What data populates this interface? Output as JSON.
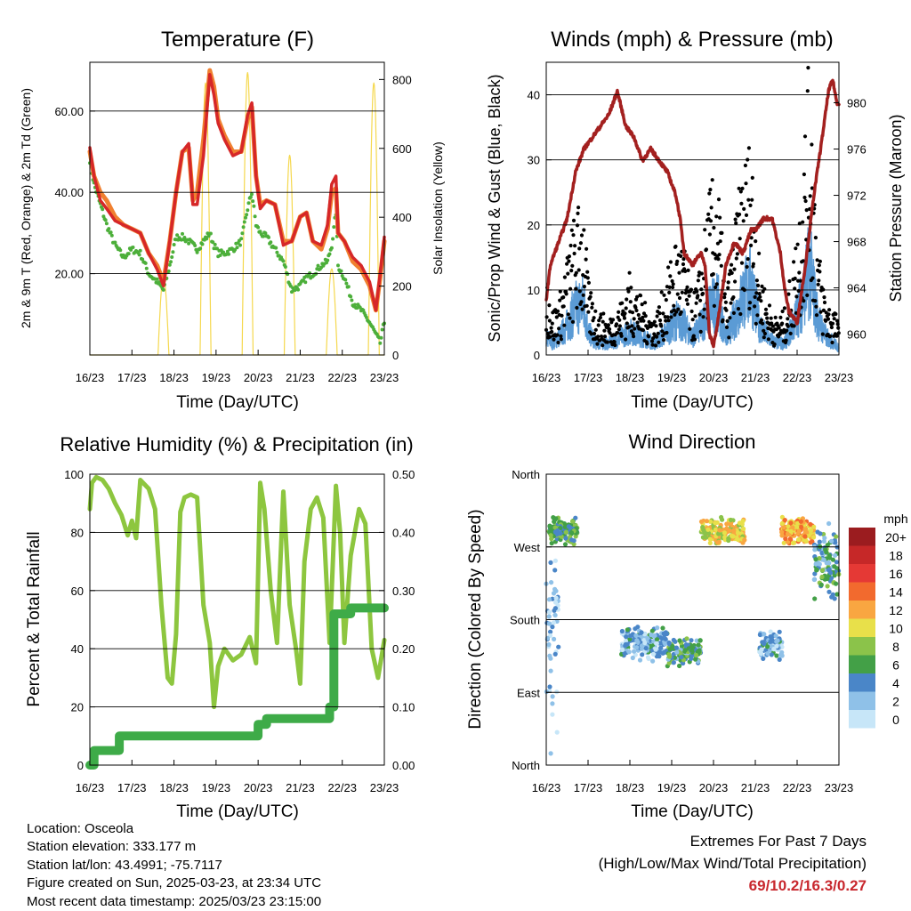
{
  "x_ticks": [
    "16/23",
    "17/23",
    "18/23",
    "19/23",
    "20/23",
    "21/23",
    "22/23",
    "23/23"
  ],
  "x_label": "Time (Day/UTC)",
  "charts": {
    "temperature": {
      "type": "line",
      "title": "Temperature (F)",
      "ylabel_left": "2m & 9m T (Red, Orange) & 2m Td (Green)",
      "ylabel_right": "Solar Insolation (Yellow)",
      "yticks_left": [
        "20.00",
        "40.00",
        "60.00"
      ],
      "yticks_right": [
        "0",
        "200",
        "400",
        "600",
        "800"
      ],
      "ylim_left": [
        0,
        72
      ],
      "ylim_right": [
        0,
        850
      ],
      "colors": {
        "t2m": "#d62728",
        "t9m": "#f08030",
        "td": "#4caf3a",
        "solar": "#f5d84e"
      },
      "x": [
        16.0,
        16.1,
        16.25,
        16.4,
        16.6,
        16.8,
        17.0,
        17.2,
        17.4,
        17.6,
        17.75,
        17.9,
        18.05,
        18.2,
        18.35,
        18.45,
        18.55,
        18.7,
        18.85,
        18.95,
        19.05,
        19.2,
        19.4,
        19.6,
        19.75,
        19.85,
        19.95,
        20.05,
        20.2,
        20.4,
        20.6,
        20.8,
        21.0,
        21.15,
        21.3,
        21.5,
        21.65,
        21.75,
        21.85,
        21.9,
        22.05,
        22.25,
        22.45,
        22.65,
        22.8,
        22.9,
        23.0
      ],
      "t2m": [
        51,
        44,
        38,
        36,
        33,
        32,
        31,
        30,
        25,
        21,
        17,
        28,
        40,
        50,
        52,
        37,
        37,
        49,
        69,
        64,
        57,
        53,
        49,
        50,
        59,
        62,
        44,
        36,
        38,
        37,
        27,
        28,
        34,
        35,
        28,
        27,
        32,
        42,
        44,
        30,
        28,
        24,
        22,
        18,
        11,
        20,
        29
      ],
      "t9m": [
        50,
        44,
        40,
        38,
        34,
        32,
        31,
        30,
        25,
        22,
        18,
        28,
        40,
        50,
        51,
        38,
        40,
        53,
        70,
        66,
        58,
        54,
        50,
        50,
        58,
        61,
        44,
        37,
        38,
        37,
        28,
        28,
        34,
        35,
        28,
        26,
        31,
        40,
        41,
        30,
        28,
        23,
        21,
        17,
        11,
        19,
        28
      ],
      "td": [
        48,
        42,
        37,
        32,
        27,
        24,
        26,
        25,
        20,
        18,
        16,
        22,
        29,
        29,
        28,
        27,
        26,
        28,
        30,
        27,
        25,
        25,
        26,
        28,
        36,
        40,
        32,
        30,
        29,
        26,
        23,
        16,
        17,
        19,
        20,
        22,
        23,
        27,
        35,
        22,
        19,
        13,
        11,
        8,
        5,
        3,
        8
      ],
      "solar_peaks": [
        17.75,
        18.75,
        19.75,
        20.75,
        21.75,
        22.75
      ],
      "solar_peak_values": [
        230,
        790,
        820,
        580,
        250,
        790
      ]
    },
    "winds": {
      "type": "scatter",
      "title": "Winds (mph) & Pressure (mb)",
      "ylabel_left": "Sonic/Prop Wind & Gust (Blue, Black)",
      "ylabel_right": "Station Pressure (Maroon)",
      "yticks_left": [
        "0",
        "10",
        "20",
        "30",
        "40"
      ],
      "yticks_right": [
        "960",
        "964",
        "968",
        "972",
        "976",
        "980"
      ],
      "ylim_left": [
        0,
        45
      ],
      "ylim_right": [
        958.2,
        983.5
      ],
      "colors": {
        "wind": "#5b9bd5",
        "gust": "#000000",
        "pressure": "#a3201f"
      },
      "x": [
        16.0,
        16.15,
        16.3,
        16.5,
        16.7,
        16.9,
        17.0,
        17.2,
        17.5,
        17.8,
        18.0,
        18.3,
        18.6,
        18.9,
        19.1,
        19.3,
        19.5,
        19.7,
        19.9,
        20.1,
        20.3,
        20.5,
        20.7,
        20.9,
        21.1,
        21.3,
        21.5,
        21.7,
        21.9,
        22.1,
        22.3,
        22.5,
        22.7,
        22.9,
        23.0
      ],
      "wind": [
        3,
        2,
        3,
        5,
        8,
        9,
        4,
        2,
        2,
        3,
        4,
        3,
        2,
        4,
        6,
        5,
        3,
        5,
        8,
        9,
        3,
        6,
        10,
        12,
        5,
        3,
        2,
        2,
        5,
        9,
        15,
        6,
        3,
        2,
        1
      ],
      "gust": [
        9,
        5,
        6,
        11,
        16,
        17,
        8,
        5,
        4,
        6,
        9,
        6,
        4,
        9,
        13,
        12,
        6,
        10,
        18,
        20,
        6,
        14,
        21,
        24,
        10,
        6,
        4,
        5,
        10,
        19,
        33,
        12,
        6,
        5,
        3
      ],
      "pressure_x": [
        16.0,
        16.1,
        16.3,
        16.5,
        16.7,
        16.9,
        17.1,
        17.3,
        17.5,
        17.7,
        17.9,
        18.1,
        18.3,
        18.5,
        18.7,
        18.9,
        19.1,
        19.2,
        19.3,
        19.5,
        19.7,
        19.8,
        19.9,
        20.0,
        20.1,
        20.3,
        20.5,
        20.7,
        20.9,
        21.0,
        21.2,
        21.4,
        21.6,
        21.7,
        21.8,
        22.0,
        22.2,
        22.4,
        22.6,
        22.75,
        22.85,
        22.95,
        23.0
      ],
      "pressure": [
        963,
        966,
        968,
        970,
        974,
        976,
        977,
        978,
        979,
        981,
        978,
        977,
        975,
        976,
        975,
        974,
        972,
        970,
        967,
        966,
        967,
        966,
        960,
        959,
        961,
        966,
        968,
        967,
        969,
        969,
        970,
        970,
        967,
        964,
        962,
        961,
        966,
        972,
        977,
        981,
        982,
        980,
        980
      ]
    },
    "humidity": {
      "type": "line",
      "title": "Relative Humidity (%) & Precipitation (in)",
      "ylabel_left": "Percent & Total Rainfall",
      "yticks_left": [
        "0",
        "20",
        "40",
        "60",
        "80",
        "100"
      ],
      "yticks_right": [
        "0.00",
        "0.10",
        "0.20",
        "0.30",
        "0.40",
        "0.50"
      ],
      "ylim_left": [
        0,
        100
      ],
      "ylim_right": [
        0,
        0.5
      ],
      "colors": {
        "rh": "#8dc63f",
        "precip": "#3eab48"
      },
      "x": [
        16.0,
        16.05,
        16.15,
        16.3,
        16.45,
        16.6,
        16.75,
        16.9,
        17.0,
        17.1,
        17.2,
        17.4,
        17.55,
        17.7,
        17.85,
        17.95,
        18.05,
        18.15,
        18.25,
        18.4,
        18.55,
        18.7,
        18.85,
        18.95,
        19.05,
        19.2,
        19.4,
        19.6,
        19.8,
        19.95,
        20.05,
        20.15,
        20.3,
        20.45,
        20.6,
        20.75,
        20.9,
        21.0,
        21.1,
        21.25,
        21.4,
        21.55,
        21.7,
        21.85,
        21.95,
        22.05,
        22.2,
        22.4,
        22.55,
        22.7,
        22.85,
        23.0
      ],
      "rh": [
        88,
        97,
        99,
        98,
        95,
        90,
        86,
        79,
        84,
        78,
        98,
        95,
        88,
        55,
        30,
        28,
        45,
        87,
        92,
        93,
        92,
        55,
        42,
        20,
        34,
        40,
        36,
        38,
        44,
        35,
        97,
        88,
        60,
        42,
        94,
        55,
        40,
        28,
        70,
        88,
        92,
        85,
        42,
        96,
        80,
        42,
        72,
        88,
        83,
        40,
        30,
        43
      ],
      "precip_x": [
        16.0,
        16.1,
        16.6,
        16.7,
        17.6,
        19.9,
        20.0,
        20.2,
        21.6,
        21.7,
        21.8,
        22.2,
        23.0
      ],
      "precip": [
        0.0,
        0.025,
        0.025,
        0.05,
        0.05,
        0.05,
        0.07,
        0.08,
        0.08,
        0.1,
        0.26,
        0.27,
        0.27
      ]
    },
    "direction": {
      "type": "scatter",
      "title": "Wind Direction",
      "ylabel_left": "Direction (Colored By Speed)",
      "yticks_left": [
        "North",
        "East",
        "South",
        "West",
        "North"
      ],
      "ylim_left": [
        0,
        360
      ],
      "legend_title": "mph",
      "legend_labels": [
        "20+",
        "18",
        "16",
        "14",
        "12",
        "10",
        "8",
        "6",
        "4",
        "2",
        "0"
      ],
      "legend_colors": [
        "#9b1c1f",
        "#c62828",
        "#e53935",
        "#f26a2e",
        "#f9a641",
        "#e8e04a",
        "#8bc34a",
        "#43a047",
        "#4a86c8",
        "#8fc1e8",
        "#c7e6f8"
      ],
      "clusters": [
        {
          "x0": 16.05,
          "x1": 16.75,
          "dir": 290,
          "spread": 18,
          "speed": 6
        },
        {
          "x0": 16.0,
          "x1": 16.3,
          "dir": 160,
          "spread": 150,
          "speed": 2
        },
        {
          "x0": 17.8,
          "x1": 18.9,
          "dir": 150,
          "spread": 22,
          "speed": 3
        },
        {
          "x0": 18.9,
          "x1": 19.7,
          "dir": 140,
          "spread": 20,
          "speed": 5
        },
        {
          "x0": 19.7,
          "x1": 20.75,
          "dir": 290,
          "spread": 18,
          "speed": 10
        },
        {
          "x0": 21.1,
          "x1": 21.65,
          "dir": 150,
          "spread": 20,
          "speed": 3
        },
        {
          "x0": 21.6,
          "x1": 22.4,
          "dir": 290,
          "spread": 18,
          "speed": 12
        },
        {
          "x0": 22.4,
          "x1": 23.0,
          "dir": 250,
          "spread": 50,
          "speed": 5
        }
      ]
    }
  },
  "info": {
    "location": "Location: Osceola",
    "elevation": "Station elevation: 333.177 m",
    "latlon": "Station lat/lon: 43.4991; -75.7117",
    "created": "Figure created on Sun, 2025-03-23, at 23:34 UTC",
    "timestamp": "Most recent data timestamp: 2025/03/23 23:15:00"
  },
  "extremes": {
    "title": "Extremes For Past 7 Days",
    "subtitle": "(High/Low/Max Wind/Total Precipitation)",
    "values": "69/10.2/16.3/0.27"
  }
}
